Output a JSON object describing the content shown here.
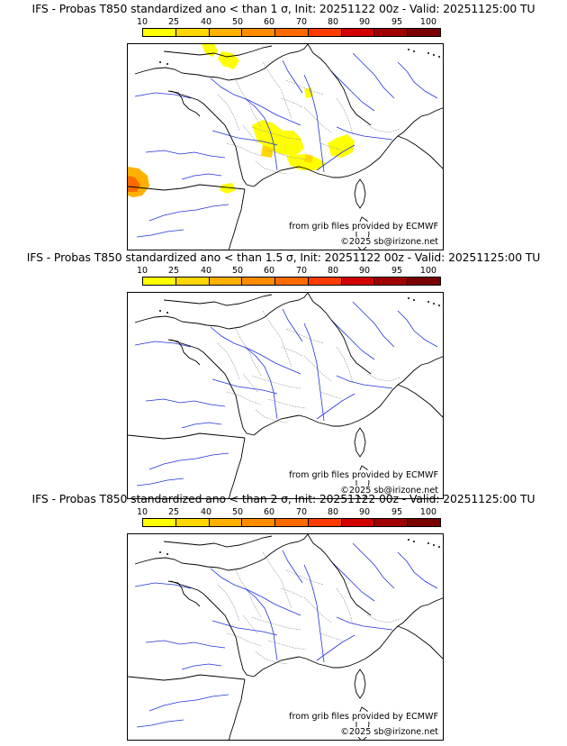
{
  "colorbar": {
    "labels": [
      "10",
      "25",
      "40",
      "50",
      "60",
      "70",
      "80",
      "90",
      "95",
      "100"
    ],
    "colors": [
      "#ffff00",
      "#ffd700",
      "#ffb000",
      "#ff8c00",
      "#ff6a00",
      "#ff3c00",
      "#d20000",
      "#a00000",
      "#7a0000"
    ]
  },
  "panels": [
    {
      "title": "IFS - Probas T850  standardized ano < than 1 σ, Init: 20251122 00z - Valid: 20251125:00 TU",
      "source": "from grib files provided by ECMWF",
      "copyright": "©2025 sb@irizone.net",
      "has_anomaly": true
    },
    {
      "title": "IFS - Probas T850  standardized ano < than 1.5 σ, Init: 20251122 00z - Valid: 20251125:00 TU",
      "source": "from grib files provided by ECMWF",
      "copyright": "©2025 sb@irizone.net",
      "has_anomaly": false
    },
    {
      "title": "IFS - Probas T850  standardized ano < than 2 σ, Init: 20251122 00z - Valid: 20251125:00 TU",
      "source": "from grib files provided by ECMWF",
      "copyright": "©2025 sb@irizone.net",
      "has_anomaly": false
    }
  ]
}
